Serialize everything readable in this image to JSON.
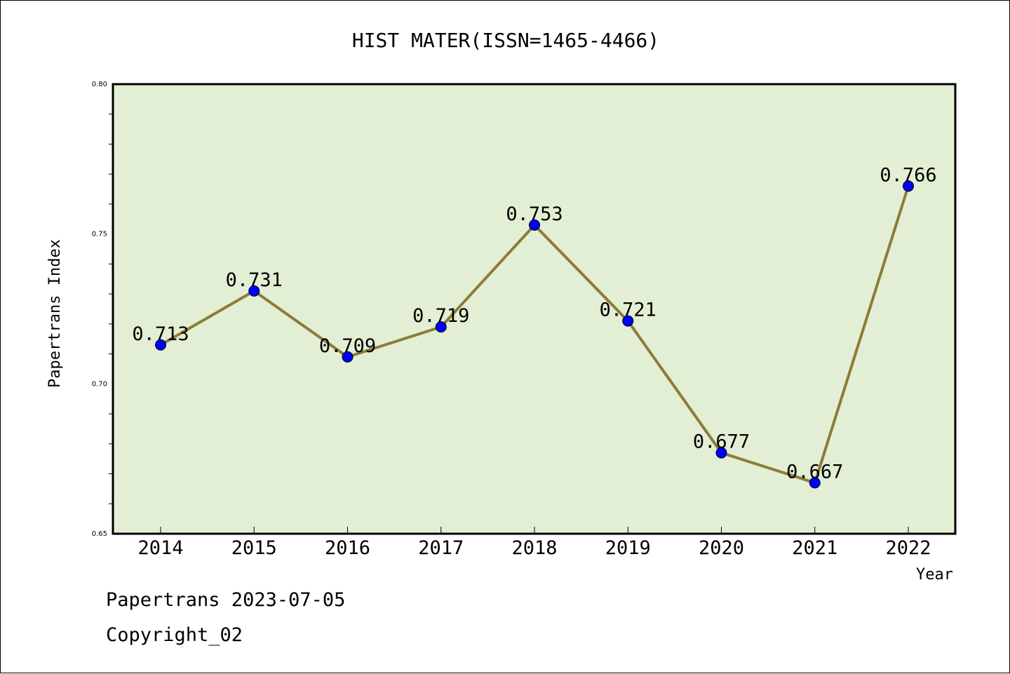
{
  "chart_data": {
    "type": "line",
    "title": "HIST MATER(ISSN=1465-4466)",
    "xlabel": "Year",
    "ylabel": "Papertrans Index",
    "x": [
      "2014",
      "2015",
      "2016",
      "2017",
      "2018",
      "2019",
      "2020",
      "2021",
      "2022"
    ],
    "series": [
      {
        "values": [
          0.713,
          0.731,
          0.709,
          0.719,
          0.753,
          0.721,
          0.677,
          0.667,
          0.766
        ]
      }
    ],
    "data_labels": [
      "0.713",
      "0.731",
      "0.709",
      "0.719",
      "0.753",
      "0.721",
      "0.677",
      "0.667",
      "0.766"
    ],
    "ylim": [
      0.65,
      0.8
    ],
    "y_ticks": [
      "0.65",
      "0.70",
      "0.75",
      "0.80"
    ],
    "grid": false,
    "plot_background": "#e2efd4",
    "line_color": "#8c7c37",
    "marker_color": "#0000ff"
  },
  "footer": {
    "line1": "Papertrans 2023-07-05",
    "line2": "Copyright_02"
  }
}
